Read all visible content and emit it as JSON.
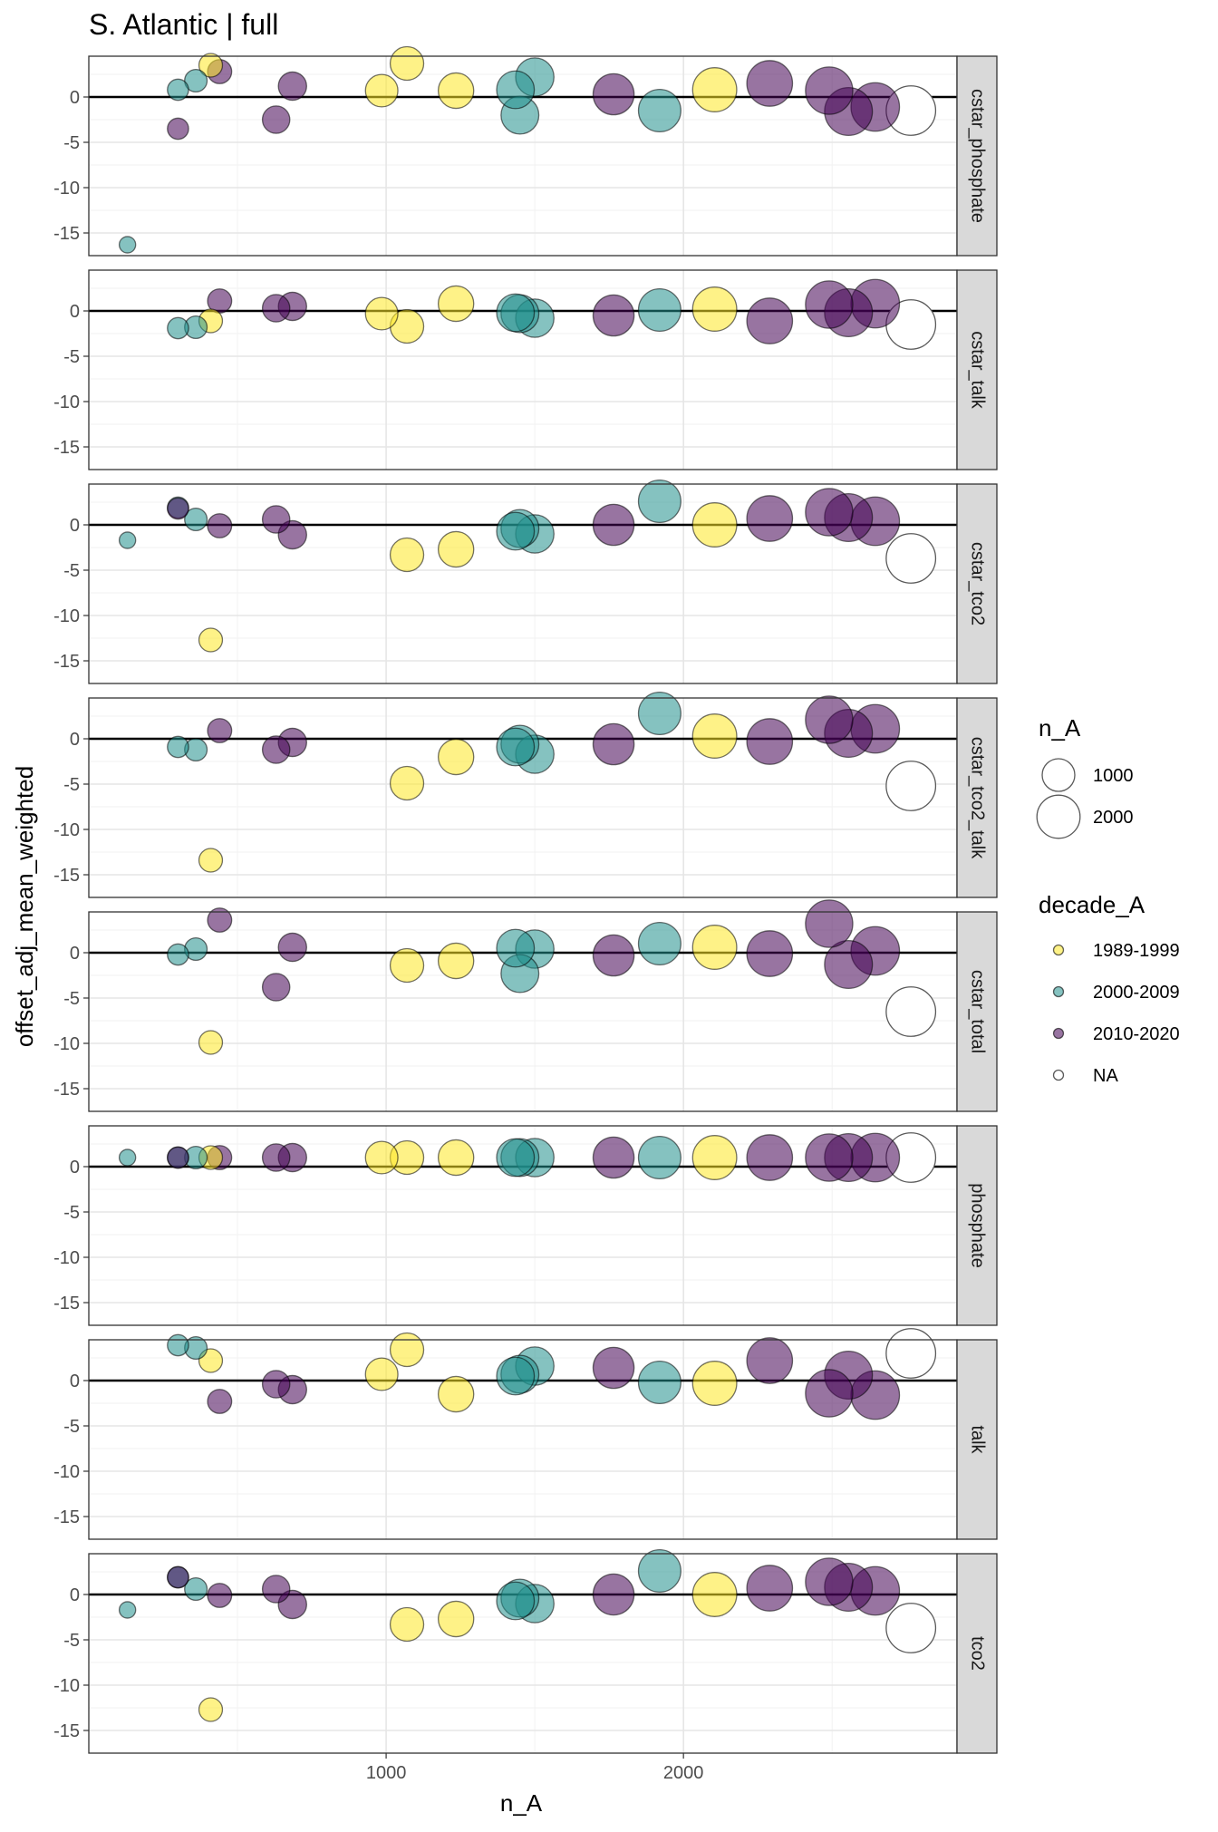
{
  "chart_data": {
    "type": "scatter",
    "title": "S. Atlantic | full",
    "xlabel": "n_A",
    "ylabel": "offset_adj_mean_weighted",
    "xlim": [
      0,
      2920
    ],
    "ylim": [
      -17.5,
      4.5
    ],
    "x_ticks": [
      1000,
      2000
    ],
    "x_tick_labels": [
      "1000",
      "2000"
    ],
    "y_ticks": [
      0,
      -5,
      -10,
      -15
    ],
    "y_tick_labels": [
      "0",
      "-5",
      "-10",
      "-15"
    ],
    "grid": true,
    "reference_line_y": 0,
    "colors": {
      "1989-1999": "#FDE725",
      "2000-2009": "#21908C",
      "2010-2020": "#440154",
      "NA": "#ffffff"
    },
    "legend": {
      "position": "right",
      "size_title": "n_A",
      "size_entries": [
        {
          "label": "1000",
          "value": 1000
        },
        {
          "label": "2000",
          "value": 2000
        }
      ],
      "color_title": "decade_A",
      "color_entries": [
        "1989-1999",
        "2000-2009",
        "2010-2020",
        "NA"
      ]
    },
    "stations": [
      {
        "n": 130,
        "decade": "2000-2009"
      },
      {
        "n": 300,
        "decade": "2000-2009"
      },
      {
        "n": 300,
        "decade": "2010-2020"
      },
      {
        "n": 360,
        "decade": "2000-2009"
      },
      {
        "n": 410,
        "decade": "1989-1999"
      },
      {
        "n": 440,
        "decade": "2010-2020"
      },
      {
        "n": 630,
        "decade": "2010-2020"
      },
      {
        "n": 685,
        "decade": "2010-2020"
      },
      {
        "n": 985,
        "decade": "1989-1999"
      },
      {
        "n": 1070,
        "decade": "1989-1999"
      },
      {
        "n": 1235,
        "decade": "1989-1999"
      },
      {
        "n": 1435,
        "decade": "2000-2009"
      },
      {
        "n": 1450,
        "decade": "2000-2009"
      },
      {
        "n": 1500,
        "decade": "2000-2009"
      },
      {
        "n": 1765,
        "decade": "2010-2020"
      },
      {
        "n": 1920,
        "decade": "2000-2009"
      },
      {
        "n": 2105,
        "decade": "1989-1999"
      },
      {
        "n": 2290,
        "decade": "2010-2020"
      },
      {
        "n": 2490,
        "decade": "2010-2020"
      },
      {
        "n": 2555,
        "decade": "2010-2020"
      },
      {
        "n": 2645,
        "decade": "2010-2020"
      },
      {
        "n": 2765,
        "decade": "NA"
      }
    ],
    "panels": [
      {
        "label": "cstar_phosphate",
        "y": [
          -16.3,
          0.8,
          -3.5,
          1.8,
          3.5,
          2.8,
          -2.5,
          1.2,
          0.7,
          3.7,
          0.7,
          0.8,
          -2.0,
          2.2,
          0.3,
          -1.5,
          0.8,
          1.5,
          0.7,
          -1.6,
          -1.1,
          -1.5
        ]
      },
      {
        "label": "cstar_talk",
        "y": [
          null,
          -1.9,
          null,
          -1.8,
          -1.1,
          1.1,
          0.3,
          0.5,
          -0.3,
          -1.7,
          0.8,
          -0.2,
          -0.3,
          -0.8,
          -0.5,
          0.1,
          0.2,
          -1.1,
          0.7,
          -0.2,
          0.8,
          -1.5
        ]
      },
      {
        "label": "cstar_tco2",
        "y": [
          -1.7,
          1.9,
          1.8,
          0.6,
          -12.7,
          -0.1,
          0.6,
          -1.1,
          null,
          -3.3,
          -2.7,
          -0.7,
          -0.4,
          -1.0,
          0.0,
          2.6,
          0.0,
          0.7,
          1.4,
          0.8,
          0.4,
          -3.7
        ]
      },
      {
        "label": "cstar_tco2_talk",
        "y": [
          null,
          -0.9,
          null,
          -1.2,
          -13.4,
          0.9,
          -1.2,
          -0.4,
          null,
          -4.9,
          -2.0,
          -0.9,
          -0.6,
          -1.7,
          -0.6,
          2.8,
          0.3,
          -0.3,
          2.1,
          0.6,
          1.1,
          -5.2
        ]
      },
      {
        "label": "cstar_total",
        "y": [
          null,
          -0.2,
          null,
          0.4,
          -9.9,
          3.6,
          -3.8,
          0.6,
          null,
          -1.4,
          -0.9,
          0.5,
          -2.3,
          0.4,
          -0.3,
          1.0,
          0.6,
          -0.1,
          3.2,
          -1.3,
          0.2,
          -6.5
        ]
      },
      {
        "label": "phosphate",
        "y": [
          1.0,
          1.0,
          1.0,
          1.0,
          1.0,
          1.0,
          1.0,
          1.0,
          1.0,
          1.0,
          1.0,
          1.0,
          1.0,
          1.0,
          1.0,
          1.0,
          1.0,
          1.0,
          1.0,
          1.0,
          1.0,
          1.0
        ]
      },
      {
        "label": "talk",
        "y": [
          null,
          3.9,
          null,
          3.6,
          2.2,
          -2.3,
          -0.4,
          -1.0,
          0.7,
          3.4,
          -1.5,
          0.5,
          0.7,
          1.6,
          1.4,
          -0.2,
          -0.3,
          2.2,
          -1.4,
          0.6,
          -1.6,
          3.0
        ]
      },
      {
        "label": "tco2",
        "y": [
          -1.7,
          1.9,
          1.9,
          0.6,
          -12.7,
          -0.1,
          0.6,
          -1.1,
          null,
          -3.3,
          -2.7,
          -0.7,
          -0.4,
          -1.0,
          0.0,
          2.6,
          0.0,
          0.7,
          1.4,
          0.8,
          0.4,
          -3.7
        ]
      }
    ]
  }
}
